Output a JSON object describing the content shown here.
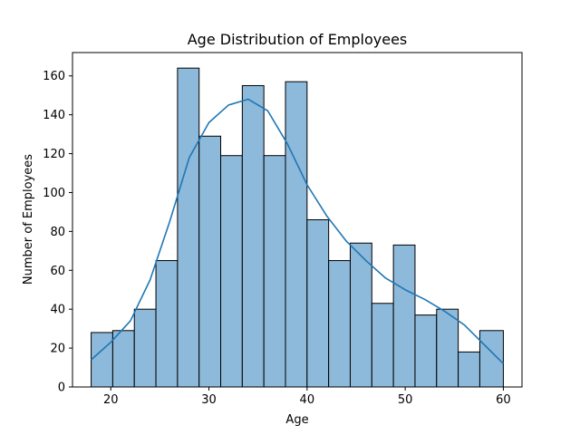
{
  "chart_data": {
    "type": "bar",
    "title": "Age Distribution of Employees",
    "xlabel": "Age",
    "ylabel": "Number of Employees",
    "bins": {
      "edges": [
        18,
        20.2,
        22.4,
        24.6,
        26.8,
        29.0,
        31.2,
        33.4,
        35.6,
        37.8,
        40.0,
        42.2,
        44.4,
        46.6,
        48.8,
        51.0,
        53.2,
        55.4,
        57.6,
        60.0
      ],
      "counts": [
        28,
        29,
        40,
        65,
        164,
        129,
        119,
        155,
        119,
        157,
        86,
        65,
        74,
        43,
        73,
        37,
        40,
        18,
        29
      ]
    },
    "kde": {
      "x": [
        18,
        20,
        22,
        24,
        26,
        28,
        30,
        32,
        34,
        36,
        38,
        40,
        42,
        44,
        46,
        48,
        50,
        52,
        54,
        56,
        58,
        60
      ],
      "y": [
        14,
        23,
        34,
        55,
        85,
        118,
        136,
        145,
        148,
        142,
        125,
        104,
        88,
        75,
        65,
        56,
        50,
        45,
        39,
        32,
        22,
        12
      ]
    },
    "xlim": [
      16.1,
      61.9
    ],
    "ylim": [
      0,
      172
    ],
    "xticks": [
      20,
      30,
      40,
      50,
      60
    ],
    "yticks": [
      0,
      20,
      40,
      60,
      80,
      100,
      120,
      140,
      160
    ],
    "grid": false,
    "legend": "none",
    "colors": {
      "bar_fill": "#8db9da",
      "bar_edge": "#000000",
      "kde_line": "#1f77b4"
    }
  }
}
